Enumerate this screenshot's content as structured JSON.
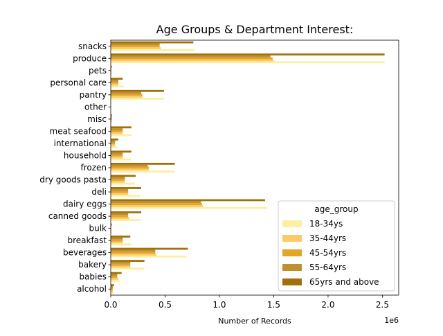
{
  "chart_data": {
    "type": "bar",
    "orientation": "horizontal",
    "title": "Age Groups & Department Interest:",
    "xlabel": "Number of Records",
    "ylabel": "",
    "x_offset_label": "1e6",
    "xlim": [
      0,
      2.65
    ],
    "x_ticks": [
      0.0,
      0.5,
      1.0,
      1.5,
      2.0,
      2.5
    ],
    "x_tick_labels": [
      "0.0",
      "0.5",
      "1.0",
      "1.5",
      "2.0",
      "2.5"
    ],
    "grid": false,
    "legend_title": "age_group",
    "legend_position": "lower right",
    "categories": [
      "alcohol",
      "babies",
      "bakery",
      "beverages",
      "breakfast",
      "bulk",
      "canned goods",
      "dairy eggs",
      "deli",
      "dry goods pasta",
      "frozen",
      "household",
      "international",
      "meat seafood",
      "misc",
      "other",
      "pantry",
      "personal care",
      "pets",
      "produce",
      "snacks"
    ],
    "series": [
      {
        "name": "18-34ys",
        "color": "#fcefa4",
        "values": [
          0.03,
          0.08,
          0.31,
          0.7,
          0.19,
          0.01,
          0.28,
          1.44,
          0.27,
          0.22,
          0.59,
          0.19,
          0.06,
          0.19,
          0.01,
          0.002,
          0.49,
          0.12,
          0.01,
          2.52,
          0.77
        ]
      },
      {
        "name": "35-44yrs",
        "color": "#fccb68",
        "values": [
          0.02,
          0.07,
          0.18,
          0.42,
          0.11,
          0.005,
          0.17,
          0.85,
          0.16,
          0.13,
          0.35,
          0.11,
          0.04,
          0.11,
          0.01,
          0.001,
          0.29,
          0.07,
          0.005,
          1.5,
          0.46
        ]
      },
      {
        "name": "45-54yrs",
        "color": "#e3a52a",
        "values": [
          0.02,
          0.06,
          0.18,
          0.41,
          0.11,
          0.005,
          0.16,
          0.84,
          0.16,
          0.13,
          0.35,
          0.11,
          0.04,
          0.11,
          0.01,
          0.001,
          0.29,
          0.07,
          0.005,
          1.49,
          0.45
        ]
      },
      {
        "name": "55-64yrs",
        "color": "#be9030",
        "values": [
          0.02,
          0.06,
          0.18,
          0.41,
          0.11,
          0.005,
          0.16,
          0.83,
          0.16,
          0.13,
          0.34,
          0.11,
          0.04,
          0.11,
          0.01,
          0.001,
          0.28,
          0.07,
          0.005,
          1.47,
          0.45
        ]
      },
      {
        "name": "65yrs and above",
        "color": "#a1700a",
        "values": [
          0.03,
          0.1,
          0.31,
          0.71,
          0.18,
          0.01,
          0.28,
          1.42,
          0.28,
          0.23,
          0.59,
          0.19,
          0.07,
          0.19,
          0.01,
          0.002,
          0.49,
          0.11,
          0.01,
          2.52,
          0.76
        ]
      }
    ]
  }
}
